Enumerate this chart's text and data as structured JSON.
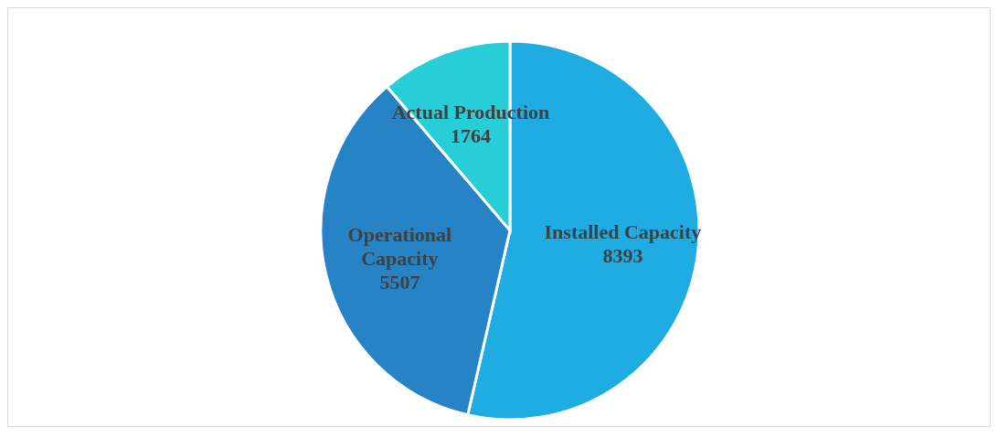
{
  "chart_data": {
    "type": "pie",
    "categories": [
      "Installed Capacity",
      "Operational Capacity",
      "Actual Production"
    ],
    "values": [
      8393,
      5507,
      1764
    ],
    "colors": [
      "#1eace3",
      "#2683c6",
      "#27ced7"
    ],
    "data_labels": true,
    "legend": false
  }
}
